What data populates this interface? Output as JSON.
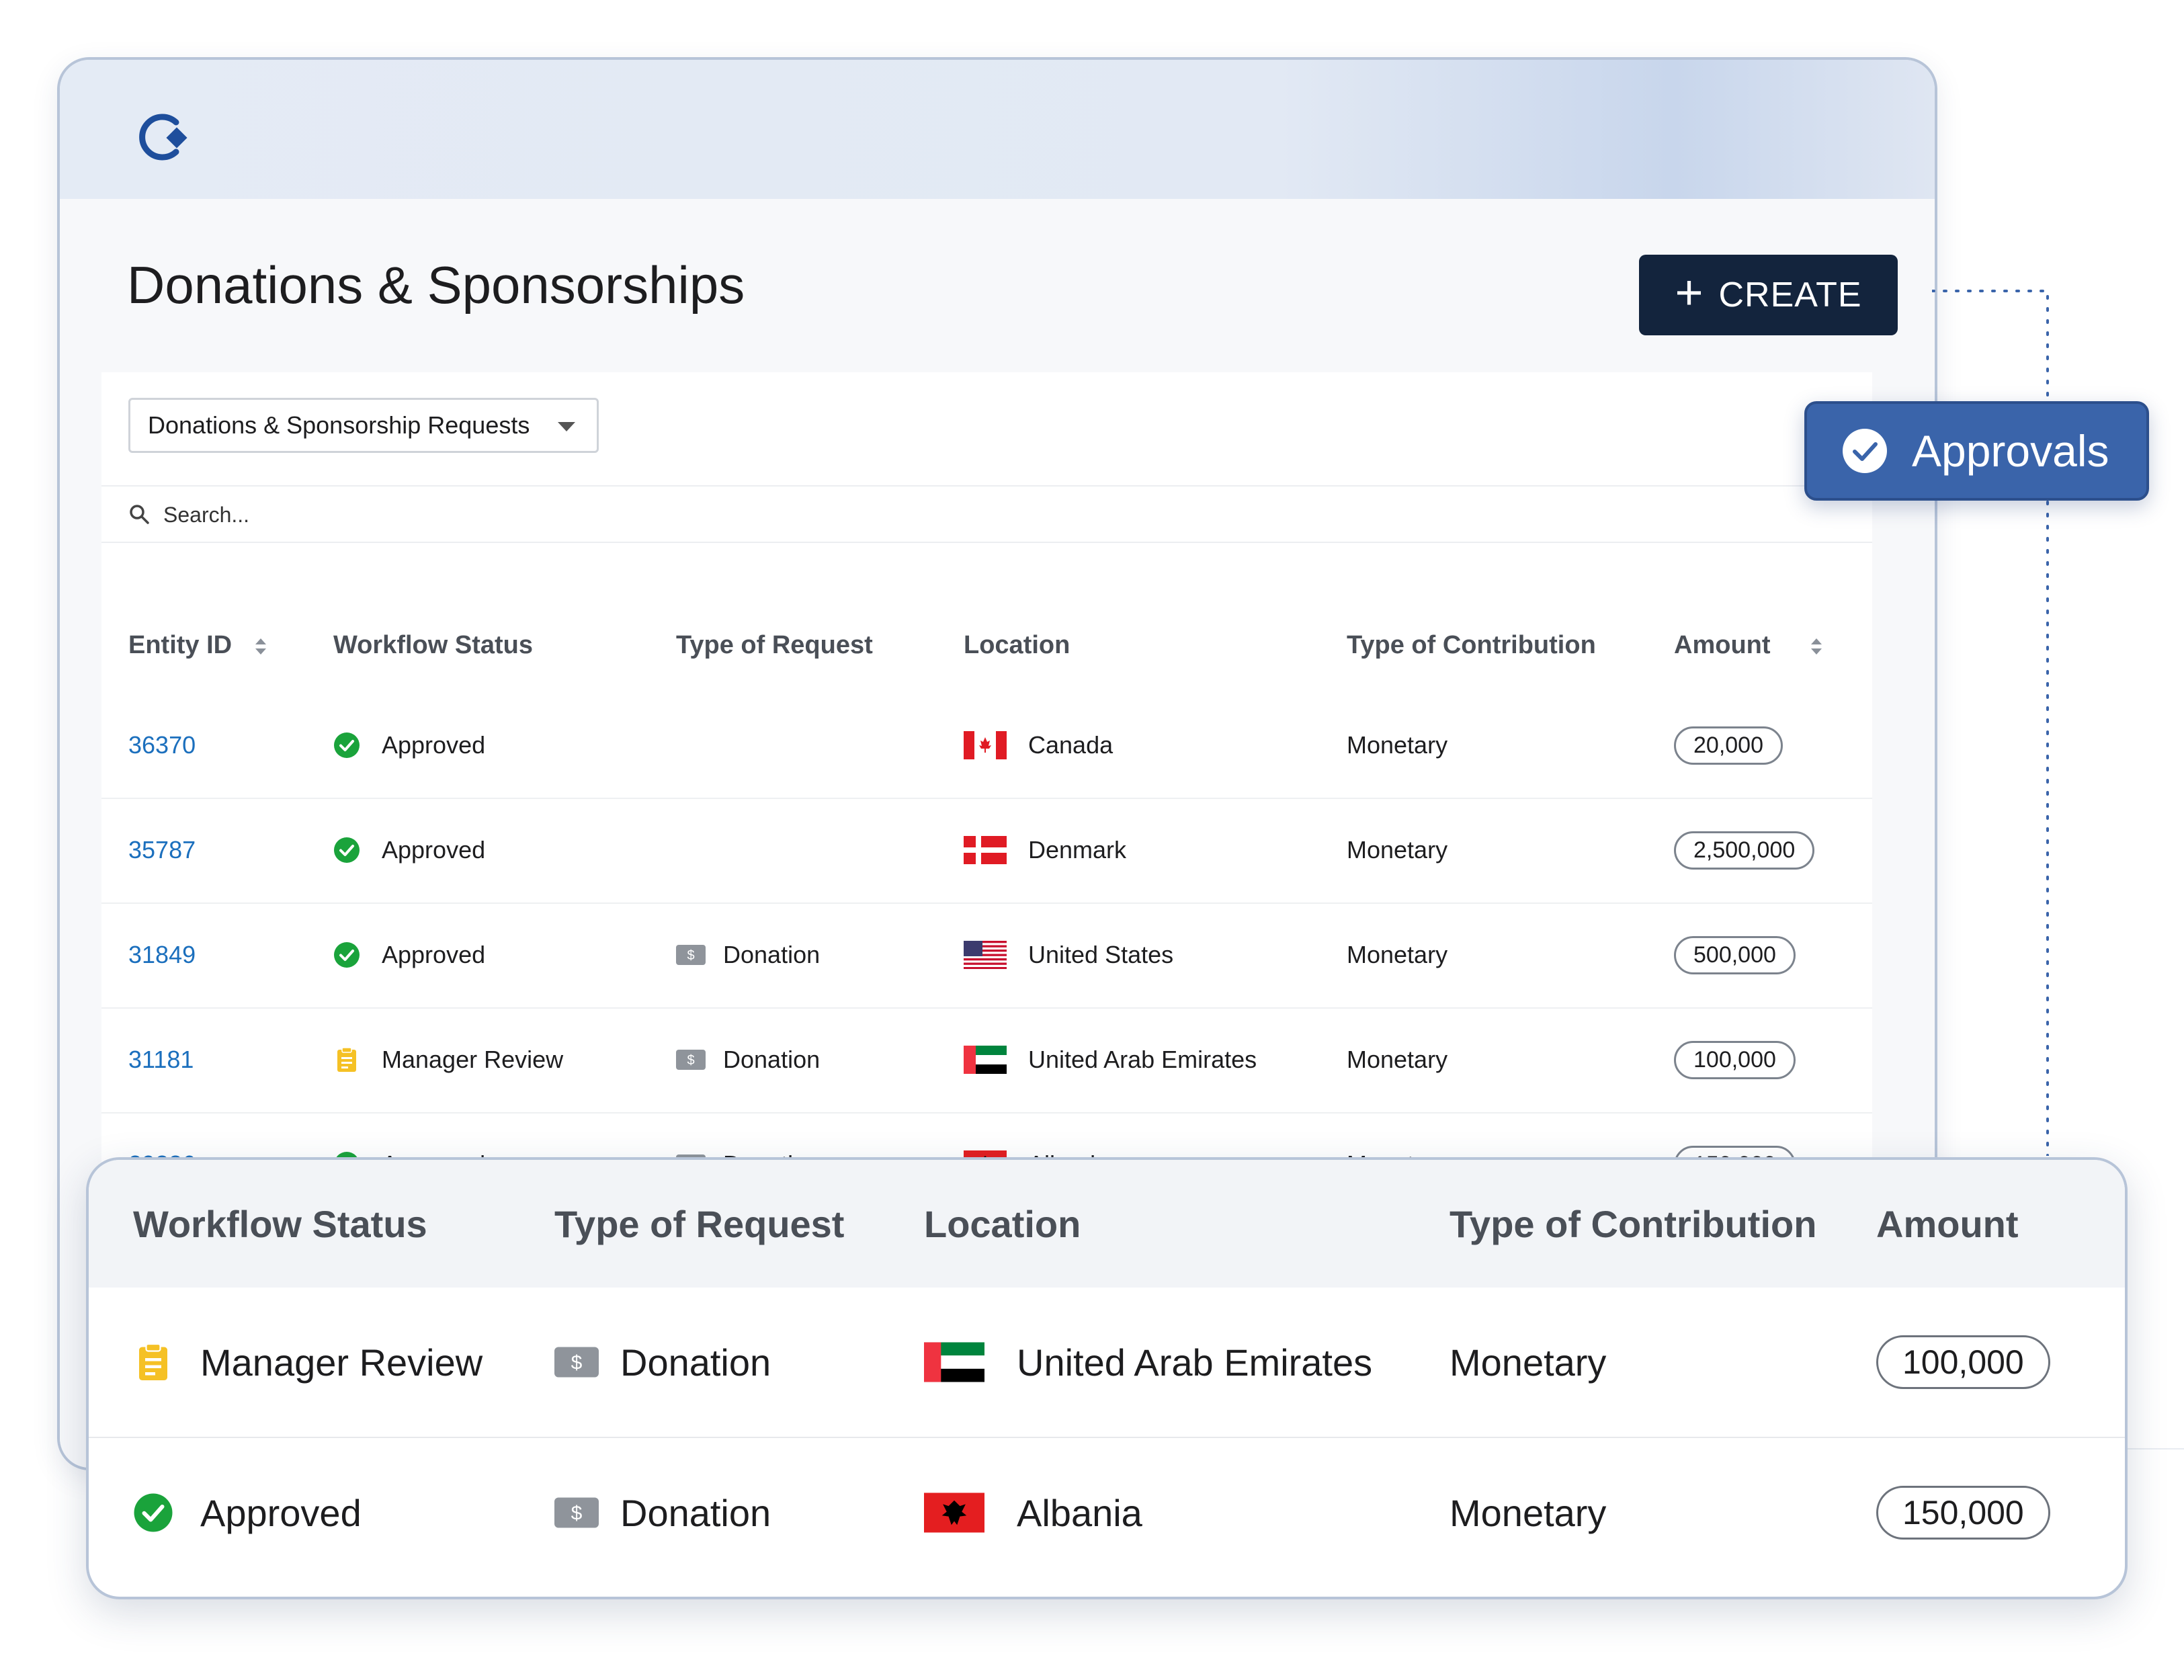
{
  "header": {
    "title": "Donations & Sponsorships",
    "create_label": "CREATE"
  },
  "filter": {
    "selected": "Donations & Sponsorship Requests"
  },
  "search": {
    "placeholder": "Search..."
  },
  "table": {
    "columns": [
      "Entity ID",
      "Workflow Status",
      "Type of Request",
      "Location",
      "Type of Contribution",
      "Amount"
    ],
    "rows": [
      {
        "id": "36370",
        "status": "Approved",
        "request": "",
        "location": "Canada",
        "contribution": "Monetary",
        "amount": "20,000"
      },
      {
        "id": "35787",
        "status": "Approved",
        "request": "",
        "location": "Denmark",
        "contribution": "Monetary",
        "amount": "2,500,000"
      },
      {
        "id": "31849",
        "status": "Approved",
        "request": "Donation",
        "location": "United States",
        "contribution": "Monetary",
        "amount": "500,000"
      },
      {
        "id": "31181",
        "status": "Manager Review",
        "request": "Donation",
        "location": "United Arab Emirates",
        "contribution": "Monetary",
        "amount": "100,000"
      },
      {
        "id": "29286",
        "status": "Approved",
        "request": "Donation",
        "location": "Albania",
        "contribution": "Monetary",
        "amount": "150,000"
      }
    ]
  },
  "approvals": {
    "label": "Approvals"
  },
  "zoom": {
    "columns": [
      "Workflow Status",
      "Type of Request",
      "Location",
      "Type of Contribution",
      "Amount"
    ],
    "rows": [
      {
        "status": "Manager Review",
        "request": "Donation",
        "location": "United Arab Emirates",
        "contribution": "Monetary",
        "amount": "100,000"
      },
      {
        "status": "Approved",
        "request": "Donation",
        "location": "Albania",
        "contribution": "Monetary",
        "amount": "150,000"
      }
    ]
  },
  "colors": {
    "accent": "#3a64aa",
    "create_button": "#13243d",
    "link": "#1b6fbd",
    "approved": "#1aa33b",
    "review": "#f5c125"
  },
  "icons": [
    "logo-icon",
    "plus-icon",
    "chevron-down-icon",
    "search-icon",
    "sort-icon",
    "check-circle-icon",
    "clipboard-icon",
    "dollar-icon",
    "flag-icon"
  ]
}
